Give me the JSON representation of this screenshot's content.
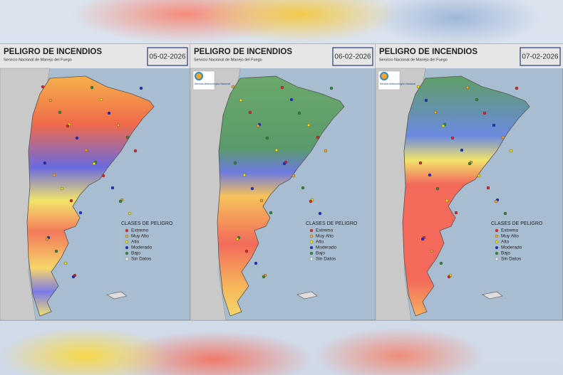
{
  "panels": [
    {
      "title": "PELIGRO DE INCENDIOS",
      "subtitle": "Servicio Nacional de Manejo del Fuego",
      "date": "05-02-2026",
      "legend": {
        "title": "CLASES DE PELIGRO",
        "items": [
          {
            "label": "Extremo",
            "color": "#e8202a"
          },
          {
            "label": "Muy Alto",
            "color": "#f5a623"
          },
          {
            "label": "Alto",
            "color": "#f2e600"
          },
          {
            "label": "Moderado",
            "color": "#1d2bd6"
          },
          {
            "label": "Bajo",
            "color": "#2e8b3a"
          },
          {
            "label": "Sin Datos",
            "color": "#ffffff"
          }
        ]
      }
    },
    {
      "title": "PELIGRO DE INCENDIOS",
      "subtitle": "Servicio Nacional de Manejo del Fuego",
      "date": "06-02-2026",
      "logo_text": "Servicio Meteorológico Nacional",
      "legend": {
        "title": "CLASES DE PELIGRO",
        "items": [
          {
            "label": "Extremo",
            "color": "#e8202a"
          },
          {
            "label": "Muy Alto",
            "color": "#f5a623"
          },
          {
            "label": "Alto",
            "color": "#f2e600"
          },
          {
            "label": "Moderado",
            "color": "#1d2bd6"
          },
          {
            "label": "Bajo",
            "color": "#2e8b3a"
          },
          {
            "label": "Sin Datos",
            "color": "#ffffff"
          }
        ]
      }
    },
    {
      "title": "PELIGRO DE INCENDIOS",
      "subtitle": "Servicio Nacional de Manejo del Fuego",
      "date": "07-02-2026",
      "logo_text": "Servicio Meteorológico Nacional",
      "legend": {
        "title": "CLASES DE PELIGRO",
        "items": [
          {
            "label": "Extremo",
            "color": "#e8202a"
          },
          {
            "label": "Muy Alto",
            "color": "#f5a623"
          },
          {
            "label": "Alto",
            "color": "#f2e600"
          },
          {
            "label": "Moderado",
            "color": "#1d2bd6"
          },
          {
            "label": "Bajo",
            "color": "#2e8b3a"
          },
          {
            "label": "Sin Datos",
            "color": "#ffffff"
          }
        ]
      }
    }
  ]
}
